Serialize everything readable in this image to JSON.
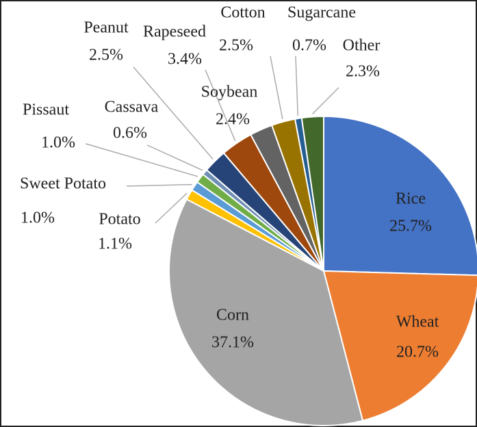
{
  "chart_data": {
    "type": "pie",
    "categories": [
      "Rice",
      "Wheat",
      "Corn",
      "Potato",
      "Sweet Potato",
      "Pissaut",
      "Cassava",
      "Peanut",
      "Rapeseed",
      "Soybean",
      "Cotton",
      "Sugarcane",
      "Other"
    ],
    "values": [
      25.7,
      20.7,
      37.1,
      1.1,
      1.0,
      1.0,
      0.6,
      2.5,
      3.4,
      2.4,
      2.5,
      0.7,
      2.3
    ],
    "value_labels": [
      "25.7%",
      "20.7%",
      "37.1%",
      "1.1%",
      "1.0%",
      "1.0%",
      "0.6%",
      "2.5%",
      "3.4%",
      "2.4%",
      "2.5%",
      "0.7%",
      "2.3%"
    ],
    "colors": [
      "#4472c4",
      "#ed7d31",
      "#a5a5a5",
      "#ffc000",
      "#5b9bd5",
      "#70ad47",
      "#6f8fb5",
      "#264478",
      "#9e480e",
      "#636363",
      "#997300",
      "#255e91",
      "#43682b"
    ]
  }
}
